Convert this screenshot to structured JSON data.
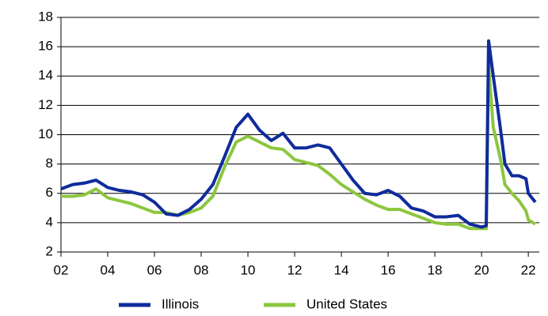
{
  "chart_data": {
    "type": "line",
    "x": [
      2.0,
      2.5,
      3.0,
      3.5,
      4.0,
      4.5,
      5.0,
      5.5,
      6.0,
      6.5,
      7.0,
      7.5,
      8.0,
      8.5,
      9.0,
      9.5,
      10.0,
      10.5,
      11.0,
      11.5,
      12.0,
      12.5,
      13.0,
      13.5,
      14.0,
      14.5,
      15.0,
      15.5,
      16.0,
      16.5,
      17.0,
      17.5,
      18.0,
      18.5,
      19.0,
      19.5,
      20.0,
      20.2,
      20.3,
      20.5,
      20.8,
      21.0,
      21.3,
      21.6,
      21.9,
      22.0,
      22.3
    ],
    "series": [
      {
        "name": "Illinois",
        "color": "#0f2b9c",
        "values": [
          6.3,
          6.6,
          6.7,
          6.9,
          6.4,
          6.2,
          6.1,
          5.9,
          5.4,
          4.6,
          4.5,
          4.9,
          5.6,
          6.6,
          8.5,
          10.5,
          11.4,
          10.3,
          9.6,
          10.1,
          9.1,
          9.1,
          9.3,
          9.1,
          8.0,
          6.9,
          6.0,
          5.9,
          6.2,
          5.8,
          5.0,
          4.8,
          4.4,
          4.4,
          4.5,
          3.9,
          3.7,
          3.8,
          16.4,
          14.0,
          10.5,
          8.0,
          7.2,
          7.2,
          7.0,
          6.0,
          5.4
        ]
      },
      {
        "name": "United States",
        "color": "#8cc63f",
        "values": [
          5.8,
          5.8,
          5.9,
          6.3,
          5.7,
          5.5,
          5.3,
          5.0,
          4.7,
          4.7,
          4.5,
          4.7,
          5.0,
          5.8,
          7.8,
          9.5,
          9.9,
          9.5,
          9.1,
          9.0,
          8.3,
          8.1,
          7.9,
          7.3,
          6.6,
          6.1,
          5.6,
          5.2,
          4.9,
          4.9,
          4.6,
          4.3,
          4.0,
          3.9,
          3.9,
          3.6,
          3.6,
          3.6,
          14.7,
          10.5,
          8.4,
          6.6,
          6.0,
          5.5,
          4.8,
          4.2,
          3.9
        ]
      }
    ],
    "xlim": [
      2,
      22.47
    ],
    "xticks": [
      {
        "value": 2,
        "label": "02"
      },
      {
        "value": 4,
        "label": "04"
      },
      {
        "value": 6,
        "label": "06"
      },
      {
        "value": 8,
        "label": "08"
      },
      {
        "value": 10,
        "label": "10"
      },
      {
        "value": 12,
        "label": "12"
      },
      {
        "value": 14,
        "label": "14"
      },
      {
        "value": 16,
        "label": "16"
      },
      {
        "value": 18,
        "label": "18"
      },
      {
        "value": 20,
        "label": "20"
      },
      {
        "value": 22,
        "label": "22"
      }
    ],
    "ylim": [
      2,
      18
    ],
    "yticks": [
      2,
      4,
      6,
      8,
      10,
      12,
      14,
      16,
      18
    ],
    "grid": true,
    "legend": "bottom"
  }
}
